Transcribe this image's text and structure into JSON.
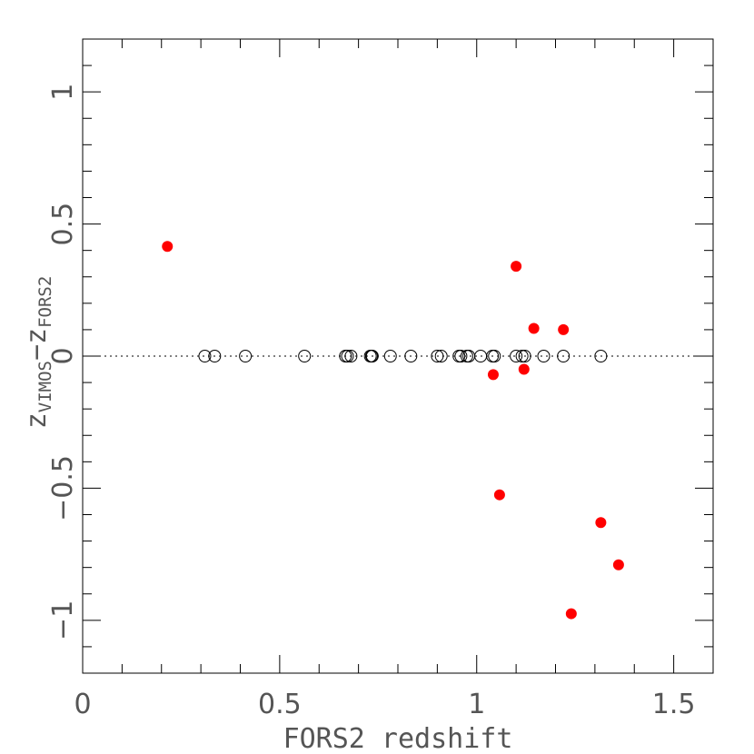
{
  "chart_data": {
    "type": "scatter",
    "xlabel": "FORS2 redshift",
    "ylabel": {
      "z1": "z",
      "sub1": "VIMOS",
      "minus": "−",
      "z2": "z",
      "sub2": "FORS2"
    },
    "xlim": [
      0,
      1.6
    ],
    "ylim": [
      -1.2,
      1.2
    ],
    "x_ticks": [
      {
        "value": 0,
        "label": "0"
      },
      {
        "value": 0.5,
        "label": "0.5"
      },
      {
        "value": 1,
        "label": "1"
      },
      {
        "value": 1.5,
        "label": "1.5"
      }
    ],
    "y_ticks": [
      {
        "value": -1,
        "label": "−1"
      },
      {
        "value": -0.5,
        "label": "−0.5"
      },
      {
        "value": 0,
        "label": "0"
      },
      {
        "value": 0.5,
        "label": "0.5"
      },
      {
        "value": 1,
        "label": "1"
      }
    ],
    "x_minor_step": 0.1,
    "y_minor_step": 0.1,
    "reference_line": {
      "y": 0,
      "style": "dotted"
    },
    "grid": false,
    "series": [
      {
        "marker": "open-circle",
        "color": "#000000",
        "points": [
          {
            "x": 0.31,
            "y": 0
          },
          {
            "x": 0.335,
            "y": 0
          },
          {
            "x": 0.413,
            "y": 0
          },
          {
            "x": 0.563,
            "y": 0
          },
          {
            "x": 0.667,
            "y": 0
          },
          {
            "x": 0.672,
            "y": 0
          },
          {
            "x": 0.681,
            "y": 0
          },
          {
            "x": 0.73,
            "y": 0
          },
          {
            "x": 0.733,
            "y": 0
          },
          {
            "x": 0.735,
            "y": 0
          },
          {
            "x": 0.781,
            "y": 0
          },
          {
            "x": 0.833,
            "y": 0
          },
          {
            "x": 0.9,
            "y": 0
          },
          {
            "x": 0.91,
            "y": 0
          },
          {
            "x": 0.955,
            "y": 0
          },
          {
            "x": 0.96,
            "y": 0
          },
          {
            "x": 0.975,
            "y": 0
          },
          {
            "x": 0.98,
            "y": 0
          },
          {
            "x": 1.01,
            "y": 0
          },
          {
            "x": 1.04,
            "y": 0
          },
          {
            "x": 1.045,
            "y": 0
          },
          {
            "x": 1.1,
            "y": 0
          },
          {
            "x": 1.115,
            "y": 0
          },
          {
            "x": 1.122,
            "y": 0
          },
          {
            "x": 1.17,
            "y": 0
          },
          {
            "x": 1.22,
            "y": 0
          },
          {
            "x": 1.315,
            "y": 0
          }
        ]
      },
      {
        "marker": "filled-circle",
        "color": "#ff0000",
        "points": [
          {
            "x": 0.215,
            "y": 0.415
          },
          {
            "x": 1.1,
            "y": 0.34
          },
          {
            "x": 1.145,
            "y": 0.105
          },
          {
            "x": 1.22,
            "y": 0.1
          },
          {
            "x": 1.042,
            "y": -0.07
          },
          {
            "x": 1.12,
            "y": -0.05
          },
          {
            "x": 1.058,
            "y": -0.525
          },
          {
            "x": 1.315,
            "y": -0.63
          },
          {
            "x": 1.36,
            "y": -0.79
          },
          {
            "x": 1.24,
            "y": -0.975
          }
        ]
      }
    ]
  }
}
